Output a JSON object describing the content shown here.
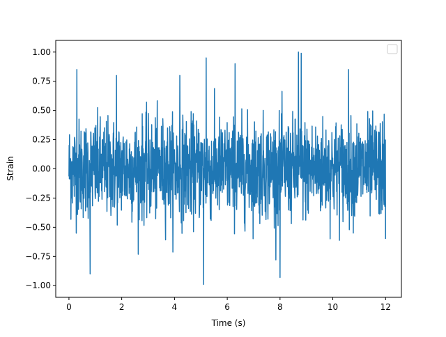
{
  "chart_data": {
    "type": "line",
    "title": "",
    "xlabel": "Time (s)",
    "ylabel": "Strain",
    "xlim": [
      -0.5,
      12.6
    ],
    "ylim": [
      -1.1,
      1.1
    ],
    "x_ticks": [
      0,
      2,
      4,
      6,
      8,
      10,
      12
    ],
    "x_tick_labels": [
      "0",
      "2",
      "4",
      "6",
      "8",
      "10",
      "12"
    ],
    "y_ticks": [
      1.0,
      0.75,
      0.5,
      0.25,
      0.0,
      -0.25,
      -0.5,
      -0.75,
      -1.0
    ],
    "y_tick_labels": [
      "1.00",
      "0.75",
      "0.50",
      "0.25",
      "0.00",
      "−0.25",
      "−0.50",
      "−0.75",
      "−1.00"
    ],
    "grid": false,
    "legend": {
      "placement": "upper right",
      "entries": []
    },
    "series": [
      {
        "color": "#1f77b4",
        "x_range": [
          0,
          12
        ],
        "envelope": {
          "typical_max": 0.5,
          "typical_min": -0.5
        },
        "notable_points": [
          {
            "x": 0.3,
            "y": 0.85
          },
          {
            "x": 0.8,
            "y": -0.9
          },
          {
            "x": 1.8,
            "y": 0.8
          },
          {
            "x": 4.2,
            "y": 0.8
          },
          {
            "x": 5.2,
            "y": 0.95
          },
          {
            "x": 5.1,
            "y": -0.99
          },
          {
            "x": 6.3,
            "y": 0.9
          },
          {
            "x": 8.0,
            "y": -0.93
          },
          {
            "x": 8.7,
            "y": 1.0
          },
          {
            "x": 8.8,
            "y": 0.99
          },
          {
            "x": 10.6,
            "y": 0.85
          },
          {
            "x": 12.0,
            "y": 0.55
          },
          {
            "x": 12.0,
            "y": -0.6
          }
        ]
      }
    ]
  }
}
